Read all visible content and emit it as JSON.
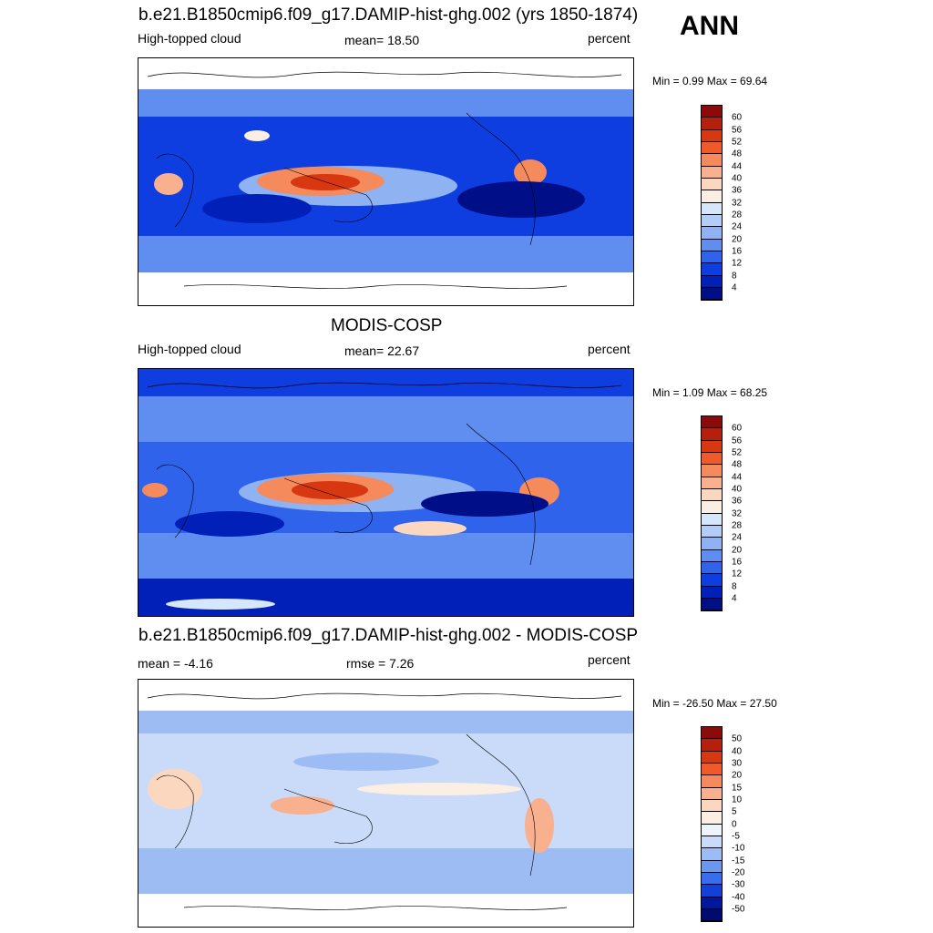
{
  "season": "ANN",
  "panels": [
    {
      "title": "b.e21.B1850cmip6.f09_g17.DAMIP-hist-ghg.002 (yrs 1850-1874)",
      "left_label": "High-topped cloud",
      "center_label": "mean=  18.50",
      "units": "percent",
      "minmax": "Min =   0.99 Max =  69.64",
      "colorbar_labels": [
        "60",
        "56",
        "52",
        "48",
        "44",
        "40",
        "36",
        "32",
        "28",
        "24",
        "20",
        "16",
        "12",
        "8",
        "4"
      ],
      "colors": [
        "#8b0a0a",
        "#b5200d",
        "#d73811",
        "#ee5a2a",
        "#f58a5c",
        "#f9b08f",
        "#fcd7bf",
        "#fbefe4",
        "#d6e6fb",
        "#b2cdf7",
        "#8eb2f2",
        "#5f8ef0",
        "#2f63ec",
        "#0f3ee0",
        "#0020b8",
        "#000f88"
      ]
    },
    {
      "title": "MODIS-COSP",
      "left_label": "High-topped cloud",
      "center_label": "mean=  22.67",
      "units": "percent",
      "minmax": "Min =   1.09 Max =  68.25",
      "colorbar_labels": [
        "60",
        "56",
        "52",
        "48",
        "44",
        "40",
        "36",
        "32",
        "28",
        "24",
        "20",
        "16",
        "12",
        "8",
        "4"
      ],
      "colors": [
        "#8b0a0a",
        "#b5200d",
        "#d73811",
        "#ee5a2a",
        "#f58a5c",
        "#f9b08f",
        "#fcd7bf",
        "#fbefe4",
        "#d6e6fb",
        "#b2cdf7",
        "#8eb2f2",
        "#5f8ef0",
        "#2f63ec",
        "#0f3ee0",
        "#0020b8",
        "#000f88"
      ]
    },
    {
      "title": "b.e21.B1850cmip6.f09_g17.DAMIP-hist-ghg.002 - MODIS-COSP",
      "left_label": "mean =  -4.16",
      "center_label": "rmse =   7.26",
      "units": "percent",
      "minmax": "Min = -26.50 Max =  27.50",
      "colorbar_labels": [
        "50",
        "40",
        "30",
        "20",
        "15",
        "10",
        "5",
        "0",
        "-5",
        "-10",
        "-15",
        "-20",
        "-30",
        "-40",
        "-50"
      ],
      "colors": [
        "#8b0a0a",
        "#b5200d",
        "#d73811",
        "#ee5a2a",
        "#f58a5c",
        "#f9b08f",
        "#fcd7bf",
        "#fbefe4",
        "#eef4fd",
        "#c9dbf8",
        "#9dbcf3",
        "#6b98ef",
        "#3a6deb",
        "#1240d8",
        "#00179e",
        "#000b6e"
      ]
    }
  ],
  "chart_data": [
    {
      "type": "heatmap",
      "title": "b.e21.B1850cmip6.f09_g17.DAMIP-hist-ghg.002 (yrs 1850-1874)",
      "variable": "High-topped cloud",
      "units": "percent",
      "mean": 18.5,
      "min": 0.99,
      "max": 69.64,
      "contour_levels": [
        4,
        8,
        12,
        16,
        20,
        24,
        28,
        32,
        36,
        40,
        44,
        48,
        52,
        56,
        60
      ],
      "lon_range": [
        0,
        360
      ],
      "lat_range": [
        -90,
        90
      ]
    },
    {
      "type": "heatmap",
      "title": "MODIS-COSP",
      "variable": "High-topped cloud",
      "units": "percent",
      "mean": 22.67,
      "min": 1.09,
      "max": 68.25,
      "contour_levels": [
        4,
        8,
        12,
        16,
        20,
        24,
        28,
        32,
        36,
        40,
        44,
        48,
        52,
        56,
        60
      ],
      "lon_range": [
        0,
        360
      ],
      "lat_range": [
        -90,
        90
      ]
    },
    {
      "type": "heatmap",
      "title": "b.e21.B1850cmip6.f09_g17.DAMIP-hist-ghg.002 - MODIS-COSP",
      "units": "percent",
      "mean": -4.16,
      "rmse": 7.26,
      "min": -26.5,
      "max": 27.5,
      "contour_levels": [
        -50,
        -40,
        -30,
        -20,
        -15,
        -10,
        -5,
        0,
        5,
        10,
        15,
        20,
        30,
        40,
        50
      ],
      "lon_range": [
        0,
        360
      ],
      "lat_range": [
        -90,
        90
      ]
    }
  ]
}
